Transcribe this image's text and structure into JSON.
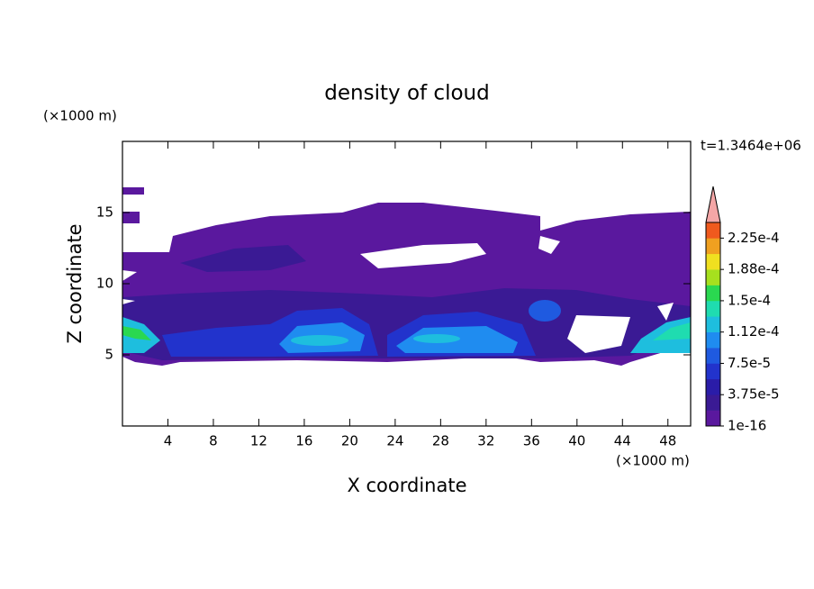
{
  "chart_data": {
    "type": "contour",
    "title": "density of cloud",
    "xlabel": "X coordinate",
    "ylabel": "Z coordinate",
    "xunit": "(×1000 m)",
    "yunit": "(×1000 m)",
    "time_label": "t=1.3464e+06",
    "xlim": [
      0,
      50
    ],
    "ylim": [
      0,
      20
    ],
    "xticks": [
      4,
      8,
      12,
      16,
      20,
      24,
      28,
      32,
      36,
      40,
      44,
      48
    ],
    "yticks": [
      5,
      10,
      15
    ],
    "clim": [
      1e-16,
      0.00024375
    ],
    "cticks": [
      1e-16,
      {
        "value": 3.75e-05,
        "label": "3.75e-5"
      },
      {
        "value": 7.5e-05,
        "label": "7.5e-5"
      },
      {
        "value": 0.0001125,
        "label": "1.12e-4"
      },
      {
        "value": 0.00015,
        "label": "1.5e-4"
      },
      {
        "value": 0.0001875,
        "label": "1.88e-4"
      },
      {
        "value": 0.000225,
        "label": "2.25e-4"
      }
    ],
    "colors": [
      "#5a189e",
      "#3a1a94",
      "#2a1ca8",
      "#2233cc",
      "#1f5ae0",
      "#1f8cf0",
      "#1ebede",
      "#1fdcb0",
      "#2ad850",
      "#a6e01e",
      "#f0e020",
      "#f0a020",
      "#f05a1e"
    ],
    "extend_color": "#f4a6a6"
  }
}
